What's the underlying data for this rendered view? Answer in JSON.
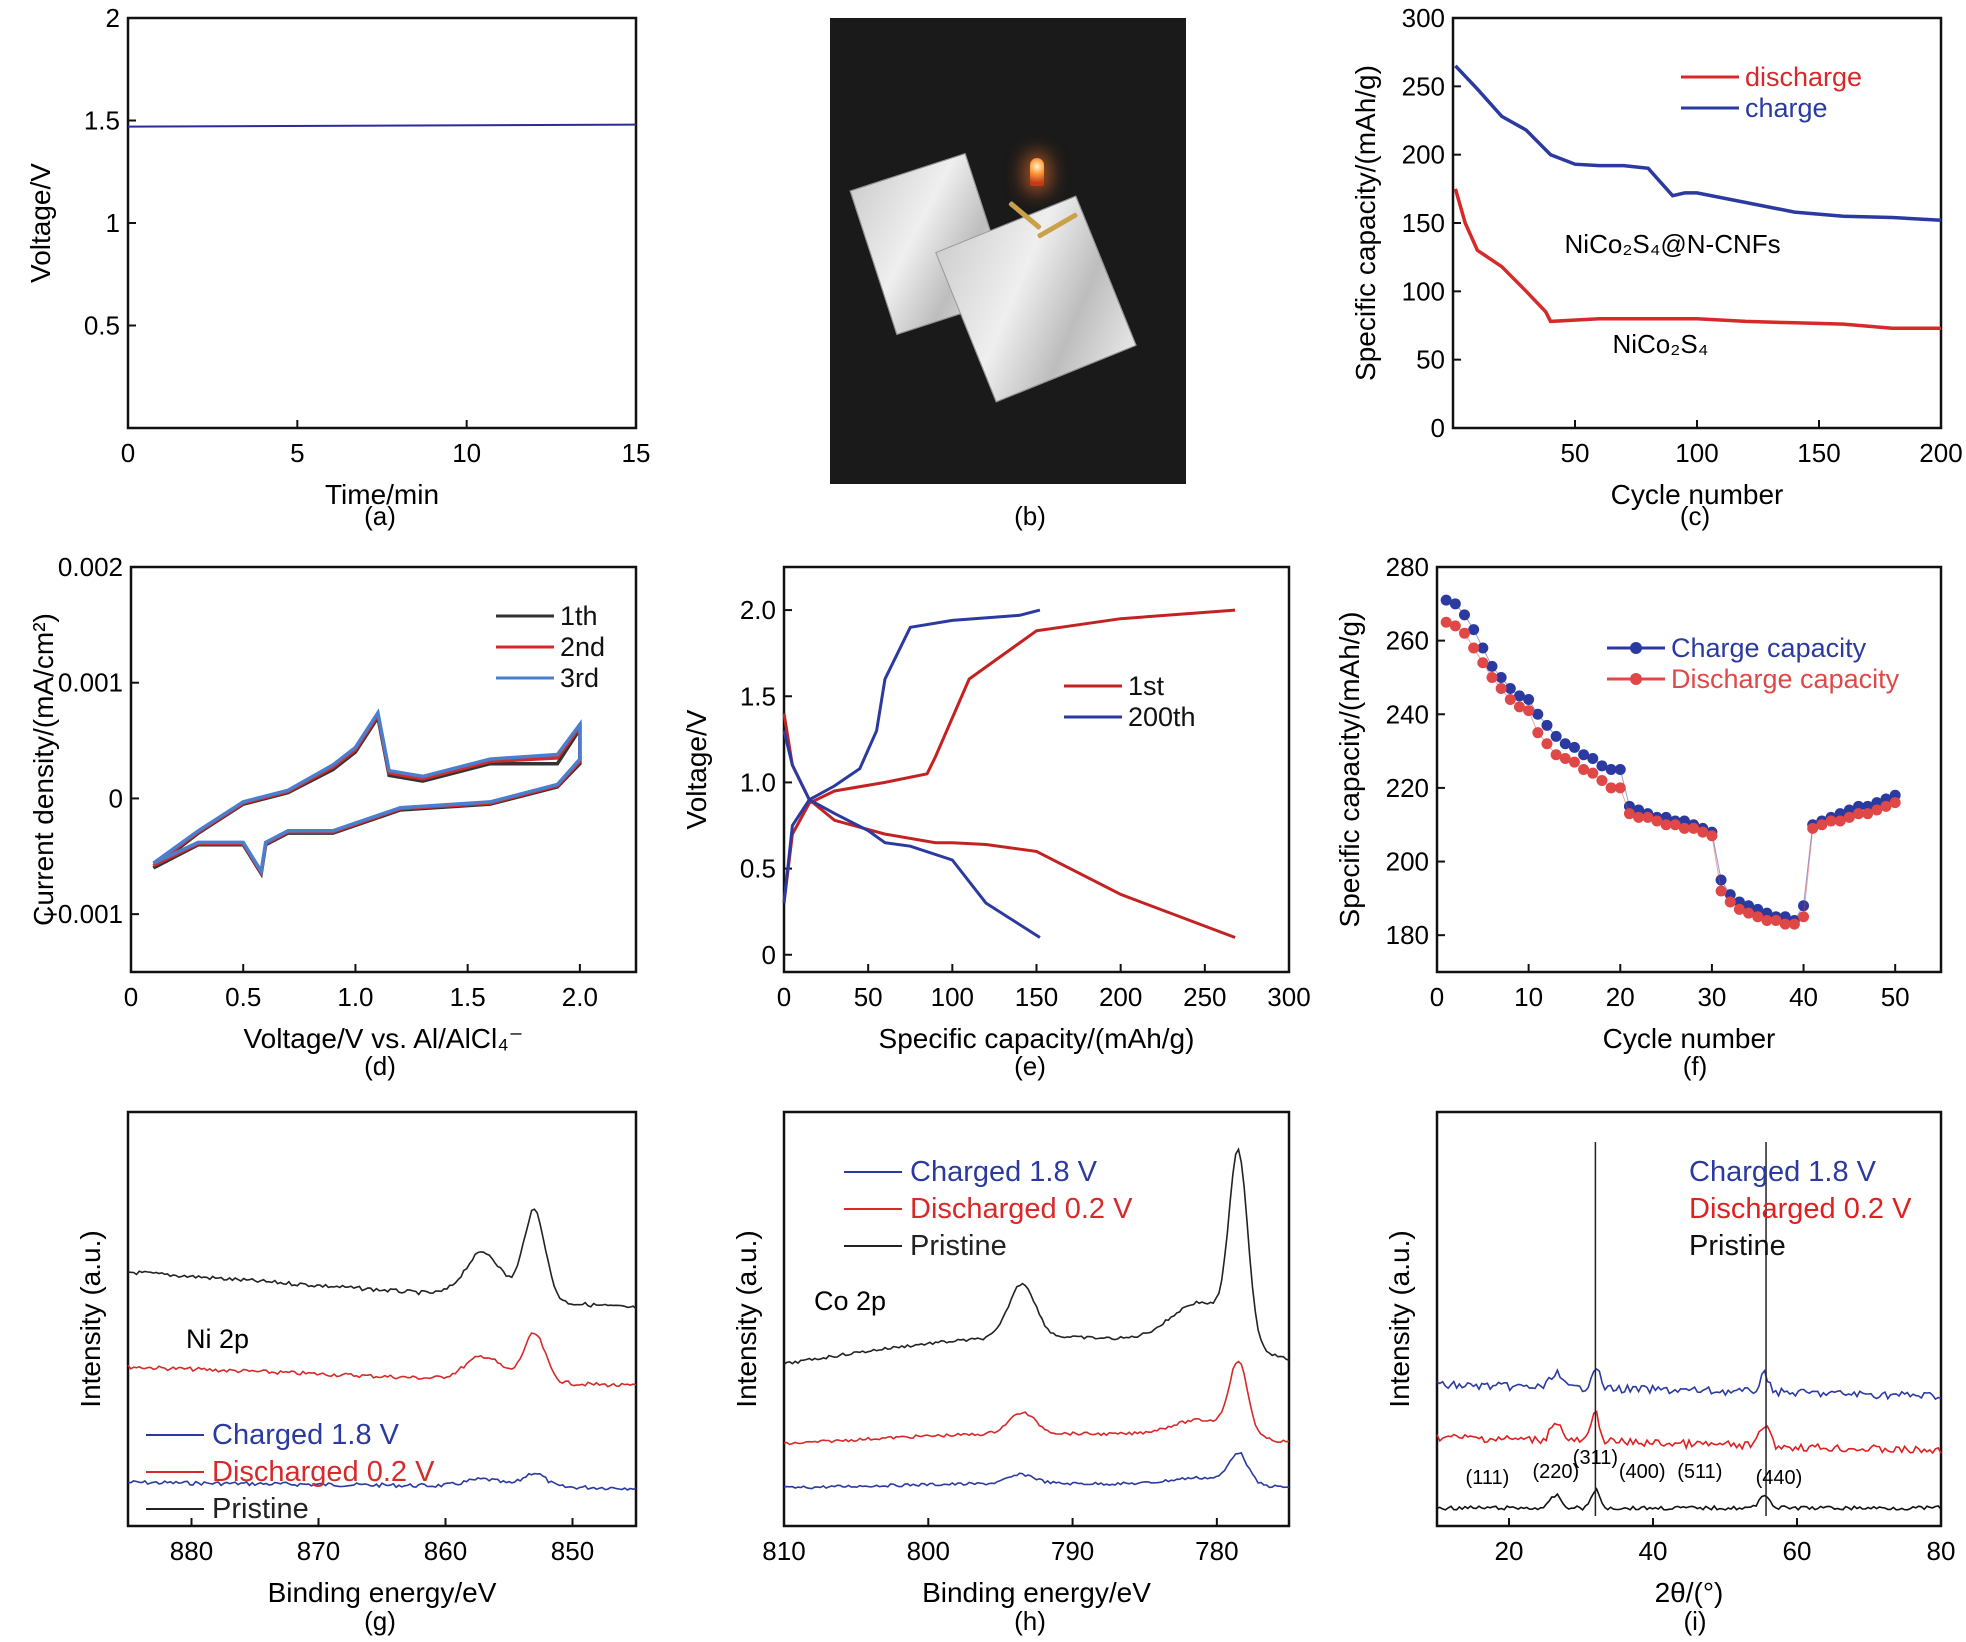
{
  "panel_labels": [
    "(a)",
    "(b)",
    "(c)",
    "(d)",
    "(e)",
    "(f)",
    "(g)",
    "(h)",
    "(i)"
  ],
  "photo": {
    "description_icon": "battery-led-photo"
  },
  "chart_data": [
    {
      "id": "a",
      "type": "line",
      "xlabel": "Time/min",
      "ylabel": "Voltage/V",
      "xlim": [
        0,
        15
      ],
      "ylim": [
        0,
        2.0
      ],
      "xticks": [
        0,
        5,
        10,
        15
      ],
      "yticks": [
        0.5,
        1.0,
        1.5,
        2.0
      ],
      "series": [
        {
          "color": "#2b2b9a",
          "x": [
            0,
            15
          ],
          "y": [
            1.47,
            1.48
          ]
        }
      ]
    },
    {
      "id": "c",
      "type": "line",
      "xlabel": "Cycle number",
      "ylabel": "Specific capacity/(mAh/g)",
      "xlim": [
        0,
        200
      ],
      "ylim": [
        0,
        300
      ],
      "xticks": [
        50,
        100,
        150,
        200
      ],
      "yticks": [
        0,
        50,
        100,
        150,
        200,
        250,
        300
      ],
      "legend": "top-right",
      "series": [
        {
          "name": "discharge",
          "color": "#d62a2a",
          "x": [
            1,
            5,
            10,
            20,
            30,
            38,
            40,
            60,
            80,
            100,
            120,
            140,
            160,
            180,
            200
          ],
          "y": [
            175,
            150,
            130,
            118,
            100,
            85,
            78,
            80,
            80,
            80,
            78,
            77,
            76,
            73,
            73
          ]
        },
        {
          "name": "charge",
          "color": "#2b3aa0",
          "x": [
            1,
            10,
            20,
            30,
            40,
            50,
            60,
            70,
            80,
            90,
            95,
            100,
            120,
            140,
            160,
            180,
            200
          ],
          "y": [
            265,
            248,
            228,
            218,
            200,
            193,
            192,
            192,
            190,
            170,
            172,
            172,
            165,
            158,
            155,
            154,
            152
          ]
        }
      ],
      "annotations": [
        {
          "text": "NiCo₂S₄@N-CNFs",
          "x": 90,
          "y": 150
        },
        {
          "text": "NiCo₂S₄",
          "x": 85,
          "y": 55
        }
      ]
    },
    {
      "id": "d",
      "type": "line",
      "xlabel": "Voltage/V vs. Al/AlCl₄⁻",
      "ylabel": "Current density/(mA/cm²)",
      "xlim": [
        0,
        2.25
      ],
      "ylim": [
        -0.0015,
        0.002
      ],
      "xticks": [
        0,
        0.5,
        1.0,
        1.5,
        2.0
      ],
      "yticks": [
        -0.001,
        0,
        0.001,
        0.002
      ],
      "xtick_labels": [
        "0",
        "0.5",
        "1.0",
        "1.5",
        "2.0"
      ],
      "ytick_labels": [
        "−0.001",
        "0",
        "0.001",
        "0.002"
      ],
      "legend": "top-right",
      "series": [
        {
          "name": "1th",
          "color": "#333333",
          "x": [
            0.1,
            0.3,
            0.5,
            0.7,
            0.9,
            1.0,
            1.1,
            1.15,
            1.3,
            1.6,
            1.9,
            2.0,
            2.0,
            1.9,
            1.6,
            1.2,
            0.9,
            0.7,
            0.6,
            0.58,
            0.5,
            0.3,
            0.1
          ],
          "y": [
            -0.0006,
            -0.0003,
            -5e-05,
            5e-05,
            0.00025,
            0.0004,
            0.0007,
            0.0002,
            0.00015,
            0.0003,
            0.0003,
            0.0006,
            0.0003,
            0.0001,
            -5e-05,
            -0.0001,
            -0.0003,
            -0.0003,
            -0.0004,
            -0.00065,
            -0.0004,
            -0.0004,
            -0.0006
          ]
        },
        {
          "name": "2nd",
          "color": "#d62a2a",
          "x": [
            0.1,
            0.3,
            0.5,
            0.7,
            0.9,
            1.0,
            1.1,
            1.15,
            1.3,
            1.6,
            1.9,
            2.0,
            2.0,
            1.9,
            1.6,
            1.2,
            0.9,
            0.7,
            0.6,
            0.58,
            0.5,
            0.3,
            0.1
          ],
          "y": [
            -0.00058,
            -0.00029,
            -4e-05,
            6e-05,
            0.00027,
            0.00042,
            0.00072,
            0.00022,
            0.00017,
            0.00032,
            0.00035,
            0.00062,
            0.00032,
            0.00011,
            -4e-05,
            -9e-05,
            -0.00029,
            -0.00029,
            -0.00039,
            -0.00064,
            -0.00039,
            -0.00039,
            -0.00058
          ]
        },
        {
          "name": "3rd",
          "color": "#4a7fd0",
          "x": [
            0.1,
            0.3,
            0.5,
            0.7,
            0.9,
            1.0,
            1.1,
            1.15,
            1.3,
            1.6,
            1.9,
            2.0,
            2.0,
            1.9,
            1.6,
            1.2,
            0.9,
            0.7,
            0.6,
            0.58,
            0.5,
            0.3,
            0.1
          ],
          "y": [
            -0.00056,
            -0.00028,
            -3e-05,
            7e-05,
            0.00029,
            0.00044,
            0.00074,
            0.00024,
            0.00019,
            0.00034,
            0.00038,
            0.00064,
            0.00034,
            0.00012,
            -3e-05,
            -8e-05,
            -0.00028,
            -0.00028,
            -0.00038,
            -0.00063,
            -0.00038,
            -0.00038,
            -0.00056
          ]
        }
      ]
    },
    {
      "id": "e",
      "type": "line",
      "xlabel": "Specific capacity/(mAh/g)",
      "ylabel": "Voltage/V",
      "xlim": [
        0,
        300
      ],
      "ylim": [
        -0.1,
        2.25
      ],
      "xticks": [
        0,
        50,
        100,
        150,
        200,
        250,
        300
      ],
      "yticks": [
        0,
        0.5,
        1.0,
        1.5,
        2.0
      ],
      "xtick_labels": [
        "0",
        "50",
        "100",
        "150",
        "200",
        "250",
        "300"
      ],
      "ytick_labels": [
        "0",
        "0.5",
        "1.0",
        "1.5",
        "2.0"
      ],
      "legend": "center-right",
      "series": [
        {
          "name": "1st",
          "color": "#c42222",
          "segments": [
            {
              "x": [
                0,
                5,
                15,
                30,
                60,
                90,
                100,
                120,
                150,
                200,
                268
              ],
              "y": [
                1.4,
                1.1,
                0.9,
                0.78,
                0.7,
                0.65,
                0.65,
                0.64,
                0.6,
                0.35,
                0.1
              ]
            },
            {
              "x": [
                0,
                5,
                15,
                30,
                60,
                85,
                90,
                110,
                150,
                200,
                268
              ],
              "y": [
                0.3,
                0.7,
                0.88,
                0.95,
                1.0,
                1.05,
                1.15,
                1.6,
                1.88,
                1.95,
                2.0
              ]
            }
          ]
        },
        {
          "name": "200th",
          "color": "#2b3aa0",
          "segments": [
            {
              "x": [
                0,
                5,
                15,
                30,
                50,
                60,
                75,
                100,
                120,
                152
              ],
              "y": [
                1.3,
                1.1,
                0.9,
                0.82,
                0.72,
                0.65,
                0.63,
                0.55,
                0.3,
                0.1
              ]
            },
            {
              "x": [
                0,
                5,
                15,
                30,
                45,
                55,
                60,
                75,
                100,
                140,
                152
              ],
              "y": [
                0.3,
                0.75,
                0.9,
                0.98,
                1.08,
                1.3,
                1.6,
                1.9,
                1.94,
                1.97,
                2.0
              ]
            }
          ]
        }
      ]
    },
    {
      "id": "f",
      "type": "scatter",
      "xlabel": "Cycle number",
      "ylabel": "Specific capacity/(mAh/g)",
      "xlim": [
        0,
        55
      ],
      "ylim": [
        170,
        280
      ],
      "xticks": [
        0,
        10,
        20,
        30,
        40,
        50
      ],
      "yticks": [
        180,
        200,
        220,
        240,
        260,
        280
      ],
      "legend": "top-right",
      "series": [
        {
          "name": "Charge capacity",
          "color": "#2b3aa0",
          "x": [
            1,
            2,
            3,
            4,
            5,
            6,
            7,
            8,
            9,
            10,
            11,
            12,
            13,
            14,
            15,
            16,
            17,
            18,
            19,
            20,
            21,
            22,
            23,
            24,
            25,
            26,
            27,
            28,
            29,
            30,
            31,
            32,
            33,
            34,
            35,
            36,
            37,
            38,
            39,
            40,
            41,
            42,
            43,
            44,
            45,
            46,
            47,
            48,
            49,
            50
          ],
          "y": [
            271,
            270,
            267,
            263,
            258,
            253,
            250,
            247,
            245,
            244,
            240,
            237,
            234,
            232,
            231,
            229,
            228,
            226,
            225,
            225,
            215,
            214,
            213,
            212,
            212,
            211,
            211,
            210,
            209,
            208,
            195,
            191,
            189,
            188,
            187,
            186,
            185,
            185,
            184,
            188,
            210,
            211,
            212,
            213,
            214,
            215,
            215,
            216,
            217,
            218
          ]
        },
        {
          "name": "Discharge capacity",
          "color": "#e04848",
          "x": [
            1,
            2,
            3,
            4,
            5,
            6,
            7,
            8,
            9,
            10,
            11,
            12,
            13,
            14,
            15,
            16,
            17,
            18,
            19,
            20,
            21,
            22,
            23,
            24,
            25,
            26,
            27,
            28,
            29,
            30,
            31,
            32,
            33,
            34,
            35,
            36,
            37,
            38,
            39,
            40,
            41,
            42,
            43,
            44,
            45,
            46,
            47,
            48,
            49,
            50
          ],
          "y": [
            265,
            264,
            262,
            258,
            254,
            250,
            247,
            244,
            242,
            241,
            235,
            232,
            229,
            228,
            227,
            225,
            224,
            222,
            220,
            220,
            213,
            212,
            212,
            211,
            210,
            210,
            209,
            209,
            208,
            207,
            192,
            189,
            187,
            186,
            185,
            184,
            184,
            183,
            183,
            185,
            209,
            210,
            211,
            211,
            212,
            213,
            213,
            214,
            215,
            216
          ]
        }
      ]
    },
    {
      "id": "g",
      "type": "line",
      "xlabel": "Binding energy/eV",
      "ylabel": "Intensity (a.u.)",
      "xlim": [
        885,
        845
      ],
      "xticks": [
        880,
        870,
        860,
        850
      ],
      "annotation": "Ni 2p",
      "legend": "bottom-left",
      "series": [
        {
          "name": "Charged 1.8 V",
          "color": "#2b3aa0",
          "offset": 0
        },
        {
          "name": "Discharged 0.2 V",
          "color": "#d62a2a",
          "offset": 1
        },
        {
          "name": "Pristine",
          "color": "#222222",
          "offset": 2
        }
      ]
    },
    {
      "id": "h",
      "type": "line",
      "xlabel": "Binding energy/eV",
      "ylabel": "Intensity (a.u.)",
      "xlim": [
        810,
        775
      ],
      "xticks": [
        810,
        800,
        790,
        780
      ],
      "annotation": "Co 2p",
      "legend": "top-left",
      "series": [
        {
          "name": "Charged 1.8 V",
          "color": "#2b3aa0",
          "offset": 0
        },
        {
          "name": "Discharged 0.2 V",
          "color": "#d62a2a",
          "offset": 1
        },
        {
          "name": "Pristine",
          "color": "#222222",
          "offset": 2
        }
      ]
    },
    {
      "id": "i",
      "type": "line",
      "xlabel": "2θ/(°)",
      "ylabel": "Intensity (a.u.)",
      "xlim": [
        10,
        80
      ],
      "xticks": [
        20,
        40,
        60,
        80
      ],
      "legend": "top-right",
      "peak_labels": [
        "(111)",
        "(220)",
        "(311)",
        "(400)",
        "(511)",
        "(440)"
      ],
      "series": [
        {
          "name": "Charged 1.8 V",
          "color": "#2b3aa0",
          "offset": 2
        },
        {
          "name": "Discharged 0.2 V",
          "color": "#e02020",
          "offset": 1
        },
        {
          "name": "Pristine",
          "color": "#111111",
          "offset": 0
        }
      ]
    }
  ]
}
